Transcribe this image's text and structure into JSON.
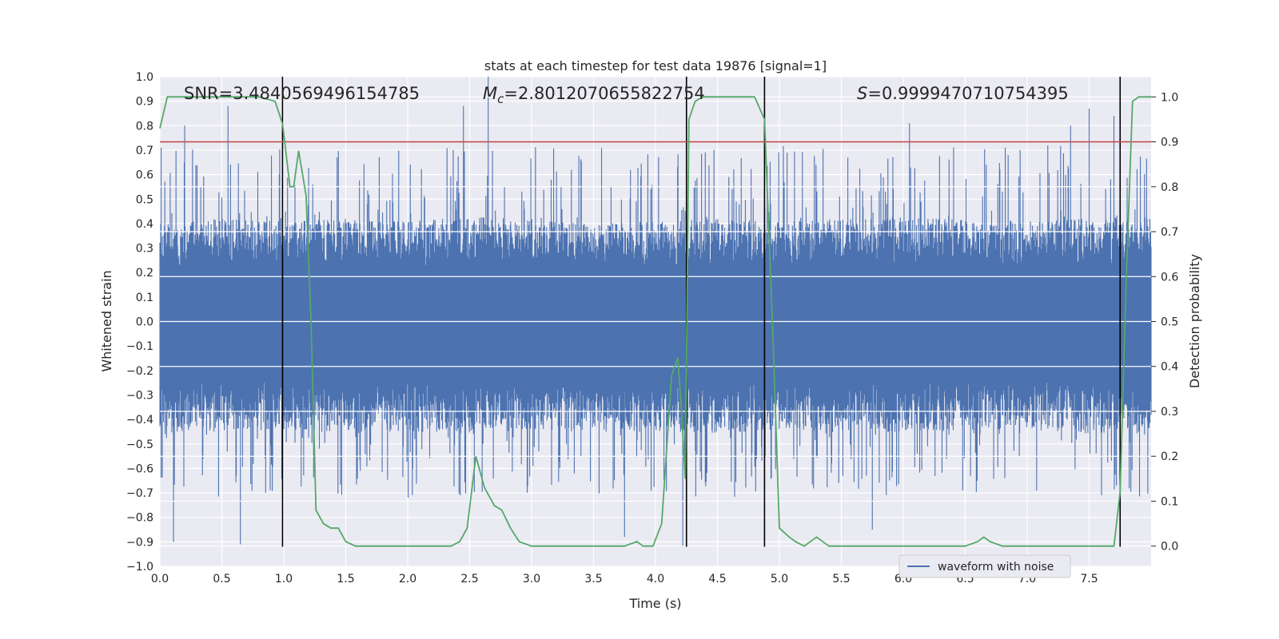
{
  "chart_data": {
    "type": "line",
    "title": "stats at each timestep for test data 19876 [signal=1]",
    "xlabel": "Time (s)",
    "ylabel": "Whitened strain",
    "y2label": "Detection probability",
    "xlim": [
      0.0,
      8.0
    ],
    "ylim": [
      -1.0,
      1.0
    ],
    "y2lim": [
      -0.045,
      1.045
    ],
    "x_ticks": [
      "0.0",
      "0.5",
      "1.0",
      "1.5",
      "2.0",
      "2.5",
      "3.0",
      "3.5",
      "4.0",
      "4.5",
      "5.0",
      "5.5",
      "6.0",
      "6.5",
      "7.0",
      "7.5"
    ],
    "y_ticks": [
      "1.0",
      "0.9",
      "0.8",
      "0.7",
      "0.6",
      "0.5",
      "0.4",
      "0.3",
      "0.2",
      "0.1",
      "0.0",
      "−0.1",
      "−0.2",
      "−0.3",
      "−0.4",
      "−0.5",
      "−0.6",
      "−0.7",
      "−0.8",
      "−0.9",
      "−1.0"
    ],
    "y2_ticks": [
      "1.0",
      "0.9",
      "0.8",
      "0.7",
      "0.6",
      "0.5",
      "0.4",
      "0.3",
      "0.2",
      "0.1",
      "0.0"
    ],
    "grid": true,
    "annotations": {
      "snr": "SNR=3.4840569496154785",
      "mc_symbol": "M",
      "mc_sub": "c",
      "mc_value": "=2.8012070655822754",
      "s_symbol": "S",
      "s_value": "=0.9999470710754395"
    },
    "legend": {
      "placement": "lower-center",
      "entries": [
        "waveform with noise"
      ]
    },
    "threshold_line": {
      "axis": "y2",
      "value": 0.9,
      "color": "#c44e52"
    },
    "vertical_lines": {
      "x": [
        0.99,
        4.25,
        4.88,
        7.75
      ],
      "ymin": -0.92,
      "ymax": 1.0,
      "color": "#000000"
    },
    "series": [
      {
        "name": "waveform with noise",
        "axis": "y",
        "color": "#4c72b0",
        "envelope_x": [
          0.0,
          0.5,
          1.0,
          1.5,
          2.0,
          2.5,
          3.0,
          3.5,
          4.0,
          4.5,
          5.0,
          5.5,
          6.0,
          6.5,
          7.0,
          7.5,
          8.0
        ],
        "envelope_typical_upper": [
          0.4,
          0.42,
          0.41,
          0.42,
          0.41,
          0.43,
          0.42,
          0.4,
          0.41,
          0.42,
          0.41,
          0.42,
          0.43,
          0.42,
          0.41,
          0.42,
          0.42
        ],
        "envelope_typical_lower": [
          -0.46,
          -0.45,
          -0.44,
          -0.46,
          -0.45,
          -0.46,
          -0.45,
          -0.44,
          -0.45,
          -0.46,
          -0.45,
          -0.46,
          -0.45,
          -0.45,
          -0.44,
          -0.46,
          -0.45
        ],
        "peaks": [
          [
            0.2,
            0.8
          ],
          [
            0.55,
            0.88
          ],
          [
            2.45,
            0.88
          ],
          [
            2.65,
            1.0
          ],
          [
            6.05,
            0.81
          ],
          [
            7.35,
            0.8
          ],
          [
            7.5,
            0.87
          ],
          [
            7.7,
            0.84
          ],
          [
            0.11,
            -0.9
          ],
          [
            0.65,
            -0.91
          ],
          [
            3.75,
            -0.88
          ],
          [
            4.22,
            -0.92
          ],
          [
            5.75,
            -0.85
          ]
        ]
      },
      {
        "name": "",
        "axis": "y2",
        "color": "#55a868",
        "x": [
          0.0,
          0.06,
          0.1,
          0.2,
          0.3,
          0.4,
          0.5,
          0.6,
          0.7,
          0.8,
          0.93,
          0.99,
          1.05,
          1.08,
          1.12,
          1.18,
          1.22,
          1.26,
          1.32,
          1.38,
          1.44,
          1.5,
          1.58,
          1.7,
          1.85,
          2.0,
          2.2,
          2.35,
          2.42,
          2.48,
          2.55,
          2.62,
          2.7,
          2.76,
          2.83,
          2.9,
          3.0,
          3.2,
          3.5,
          3.75,
          3.85,
          3.9,
          3.98,
          4.05,
          4.13,
          4.18,
          4.21,
          4.24,
          4.27,
          4.32,
          4.38,
          4.5,
          4.7,
          4.8,
          4.88,
          4.95,
          5.0,
          5.08,
          5.13,
          5.2,
          5.25,
          5.3,
          5.35,
          5.4,
          5.5,
          5.6,
          5.7,
          5.8,
          5.95,
          6.2,
          6.5,
          6.6,
          6.65,
          6.7,
          6.8,
          7.0,
          7.3,
          7.5,
          7.65,
          7.7,
          7.75,
          7.8,
          7.85,
          7.9,
          7.95,
          8.0
        ],
        "y": [
          0.93,
          1.0,
          1.0,
          1.0,
          1.0,
          1.0,
          1.0,
          1.0,
          1.0,
          1.0,
          0.99,
          0.94,
          0.8,
          0.8,
          0.88,
          0.78,
          0.5,
          0.08,
          0.05,
          0.04,
          0.04,
          0.01,
          0.0,
          0.0,
          0.0,
          0.0,
          0.0,
          0.0,
          0.01,
          0.04,
          0.2,
          0.13,
          0.09,
          0.08,
          0.04,
          0.01,
          0.0,
          0.0,
          0.0,
          0.0,
          0.01,
          0.0,
          0.0,
          0.05,
          0.38,
          0.42,
          0.3,
          0.15,
          0.95,
          0.99,
          1.0,
          1.0,
          1.0,
          1.0,
          0.95,
          0.45,
          0.04,
          0.02,
          0.01,
          0.0,
          0.01,
          0.02,
          0.01,
          0.0,
          0.0,
          0.0,
          0.0,
          0.0,
          0.0,
          0.0,
          0.0,
          0.01,
          0.02,
          0.01,
          0.0,
          0.0,
          0.0,
          0.0,
          0.0,
          0.0,
          0.12,
          0.6,
          0.99,
          1.0,
          1.0,
          1.0
        ]
      }
    ]
  }
}
